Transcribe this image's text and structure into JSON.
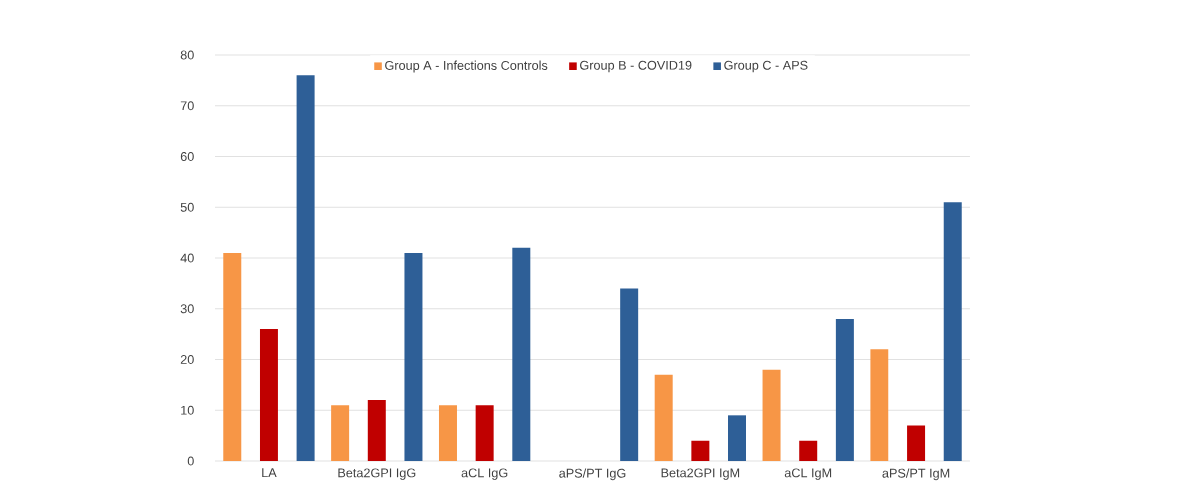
{
  "chart_data": {
    "type": "bar",
    "categories": [
      "LA",
      "Beta2GPI IgG",
      "aCL IgG",
      "aPS/PT IgG",
      "Beta2GPI IgM",
      "aCL IgM",
      "aPS/PT IgM"
    ],
    "series": [
      {
        "name": "Group A - Infections Controls",
        "color": "#f79646",
        "values": [
          41,
          11,
          11,
          0,
          17,
          18,
          22
        ]
      },
      {
        "name": "Group B - COVID19",
        "color": "#c00000",
        "values": [
          26,
          12,
          11,
          0,
          4,
          4,
          7
        ]
      },
      {
        "name": "Group C - APS",
        "color": "#2e5f97",
        "values": [
          76,
          41,
          42,
          34,
          9,
          28,
          51
        ]
      }
    ],
    "ylim": [
      0,
      80
    ],
    "yticks": [
      0,
      10,
      20,
      30,
      40,
      50,
      60,
      70,
      80
    ],
    "grid": "y",
    "legend": "top"
  }
}
